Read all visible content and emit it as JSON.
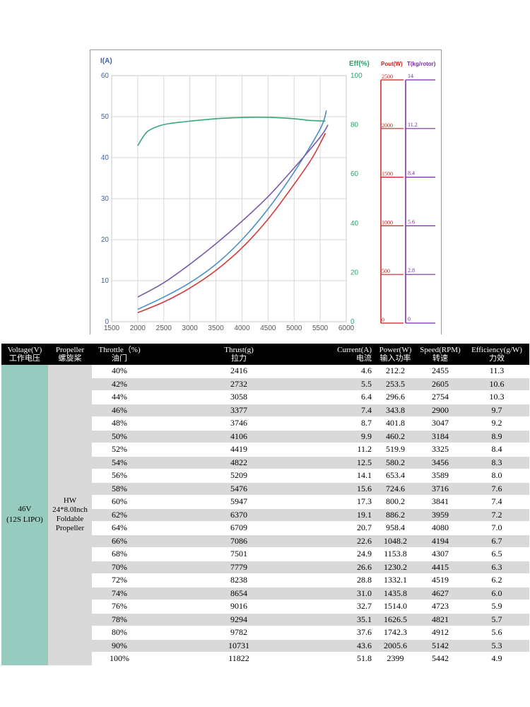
{
  "chart_data": {
    "type": "line",
    "x": [
      2000,
      2500,
      3000,
      3500,
      4000,
      4500,
      5000,
      5500
    ],
    "x_axis": {
      "ticks": [
        "1500",
        "2000",
        "2500",
        "3000",
        "3500",
        "4000",
        "4500",
        "5000",
        "5500",
        "6000"
      ],
      "range": [
        1500,
        6000
      ]
    },
    "left_axis": {
      "title": "I(A)",
      "ticks": [
        "0",
        "10",
        "20",
        "30",
        "40",
        "50",
        "60"
      ],
      "range": [
        0,
        60
      ],
      "color": "#3b5fa8"
    },
    "right_axis": {
      "title": "Eff(%)",
      "ticks": [
        "0",
        "20",
        "40",
        "60",
        "80",
        "100"
      ],
      "range": [
        0,
        100
      ],
      "color": "#2aa36b"
    },
    "pout_scale": {
      "title": "Pout(W)",
      "ticks": [
        "0",
        "500",
        "1000",
        "1500",
        "2000",
        "2500"
      ],
      "range": [
        0,
        2500
      ],
      "color": "#cc2222"
    },
    "thrust_scale": {
      "title": "T(kg/rotor)",
      "ticks": [
        "0",
        "2.8",
        "5.6",
        "8.4",
        "11.2",
        "14"
      ],
      "range": [
        0,
        14
      ],
      "color": "#7a2aa8"
    },
    "series": [
      {
        "name": "Eff(%)",
        "axis": "right",
        "color": "#3aa878",
        "x": [
          2000,
          2100,
          2200,
          2400,
          2600,
          3000,
          3500,
          4000,
          4300,
          4600,
          5000,
          5300,
          5600
        ],
        "values": [
          71.5,
          75,
          77.5,
          79.5,
          80.5,
          81.5,
          82.5,
          83,
          83.1,
          83,
          82.5,
          81.8,
          81.5
        ]
      },
      {
        "name": "I(A)",
        "axis": "left",
        "color": "#4a8fc8",
        "x": [
          2000,
          2500,
          3000,
          3500,
          4000,
          4500,
          5000,
          5500,
          5620
        ],
        "values": [
          3,
          6,
          9.5,
          14,
          20,
          27.5,
          36.5,
          47,
          51.5
        ]
      },
      {
        "name": "Pout(W)",
        "axis": "left",
        "color": "#d03a3a",
        "x": [
          2000,
          2500,
          3000,
          3500,
          4000,
          4500,
          5000,
          5350,
          5600
        ],
        "values": [
          2.2,
          4.8,
          8.2,
          12.5,
          18,
          25,
          33.5,
          40,
          46
        ]
      },
      {
        "name": "T(kg/rotor)",
        "axis": "left",
        "color": "#7a5aa8",
        "x": [
          2000,
          2500,
          3000,
          3500,
          4000,
          4500,
          5000,
          5500,
          5650
        ],
        "values": [
          6,
          9.5,
          14,
          19,
          24.5,
          30.5,
          37.5,
          45,
          48
        ]
      }
    ]
  },
  "table": {
    "headers": [
      {
        "en": "Voltage(V)",
        "cn": "工作电压"
      },
      {
        "en": "Propeller",
        "cn": "螺旋桨"
      },
      {
        "en": "Throttle（%)",
        "cn": "油门"
      },
      {
        "en": "Thrust(g)",
        "cn": "拉力"
      },
      {
        "en": "Current(A)",
        "cn": "电流"
      },
      {
        "en": "Power(W)",
        "cn": "输入功率"
      },
      {
        "en": "Speed(RPM)",
        "cn": "转速"
      },
      {
        "en": "Efficiency(g/W)",
        "cn": "力效"
      }
    ],
    "voltage": {
      "line1": "46V",
      "line2": "(12S LIPO)"
    },
    "propeller": {
      "line1": "HW",
      "line2": "24*8.0Inch",
      "line3": "Foldable",
      "line4": "Propeller"
    },
    "rows": [
      [
        "40%",
        "2416",
        "4.6",
        "212.2",
        "2455",
        "11.3"
      ],
      [
        "42%",
        "2732",
        "5.5",
        "253.5",
        "2605",
        "10.6"
      ],
      [
        "44%",
        "3058",
        "6.4",
        "296.6",
        "2754",
        "10.3"
      ],
      [
        "46%",
        "3377",
        "7.4",
        "343.8",
        "2900",
        "9.7"
      ],
      [
        "48%",
        "3746",
        "8.7",
        "401.8",
        "3047",
        "9.2"
      ],
      [
        "50%",
        "4106",
        "9.9",
        "460.2",
        "3184",
        "8.9"
      ],
      [
        "52%",
        "4419",
        "11.2",
        "519.9",
        "3325",
        "8.4"
      ],
      [
        "54%",
        "4822",
        "12.5",
        "580.2",
        "3456",
        "8.3"
      ],
      [
        "56%",
        "5209",
        "14.1",
        "653.4",
        "3589",
        "8.0"
      ],
      [
        "58%",
        "5476",
        "15.6",
        "724.6",
        "3716",
        "7.6"
      ],
      [
        "60%",
        "5947",
        "17.3",
        "800.2",
        "3841",
        "7.4"
      ],
      [
        "62%",
        "6370",
        "19.1",
        "886.2",
        "3959",
        "7.2"
      ],
      [
        "64%",
        "6709",
        "20.7",
        "958.4",
        "4080",
        "7.0"
      ],
      [
        "66%",
        "7086",
        "22.6",
        "1048.2",
        "4194",
        "6.7"
      ],
      [
        "68%",
        "7501",
        "24.9",
        "1153.8",
        "4307",
        "6.5"
      ],
      [
        "70%",
        "7779",
        "26.6",
        "1230.2",
        "4415",
        "6.3"
      ],
      [
        "72%",
        "8238",
        "28.8",
        "1332.1",
        "4519",
        "6.2"
      ],
      [
        "74%",
        "8654",
        "31.0",
        "1435.8",
        "4627",
        "6.0"
      ],
      [
        "76%",
        "9016",
        "32.7",
        "1514.0",
        "4723",
        "5.9"
      ],
      [
        "78%",
        "9294",
        "35.1",
        "1626.5",
        "4821",
        "5.7"
      ],
      [
        "80%",
        "9782",
        "37.6",
        "1742.3",
        "4912",
        "5.6"
      ],
      [
        "90%",
        "10731",
        "43.6",
        "2005.6",
        "5142",
        "5.3"
      ],
      [
        "100%",
        "11822",
        "51.8",
        "2399",
        "5442",
        "4.9"
      ]
    ]
  }
}
